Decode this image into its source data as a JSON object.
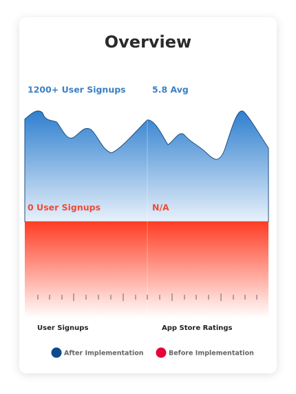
{
  "title": "Overview",
  "after": {
    "signups": "1200+ User Signups",
    "ratings": "5.8 Avg"
  },
  "before": {
    "signups": "0 User Signups",
    "ratings": "N/A"
  },
  "columns": [
    "User Signups",
    "App Store Ratings"
  ],
  "legend": [
    "After Implementation",
    "Before Implementation"
  ]
}
